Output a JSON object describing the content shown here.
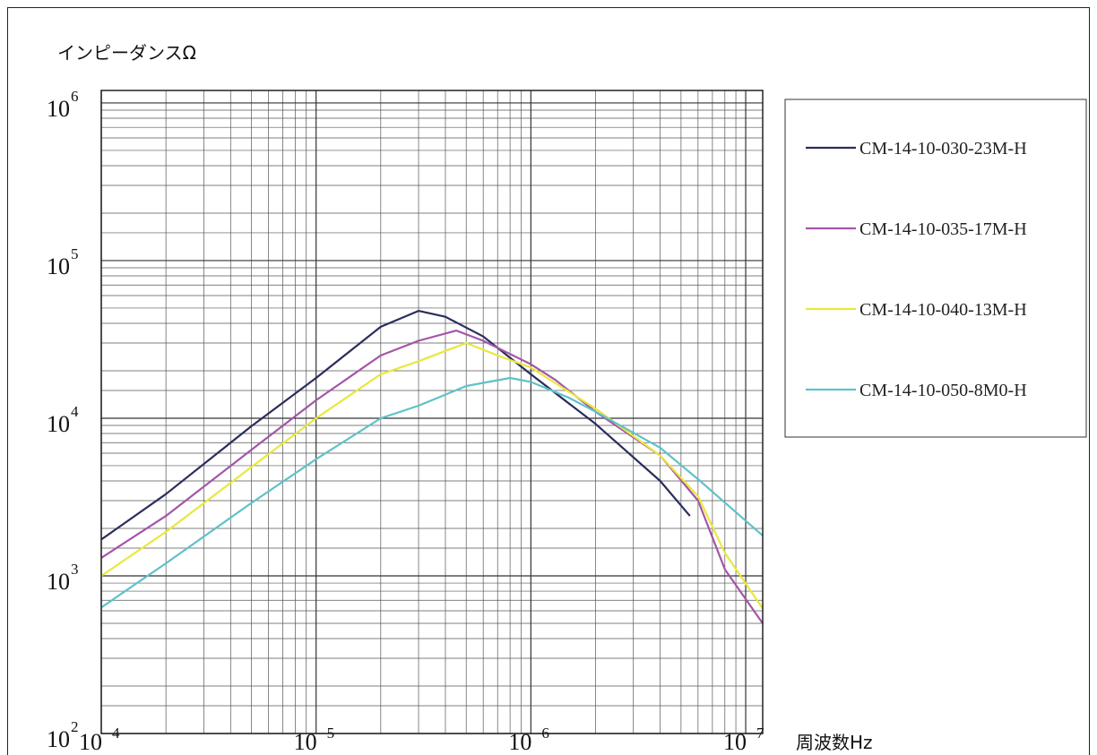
{
  "chart_data": {
    "type": "line",
    "title": "",
    "ylabel": "インピーダンスΩ",
    "xlabel": "周波数Hz",
    "x_scale": "log",
    "y_scale": "log",
    "xlim": [
      10000,
      12000000
    ],
    "ylim": [
      100,
      1200000
    ],
    "grid": true,
    "legend_position": "right",
    "x_ticks": [
      {
        "value": 10000,
        "base": "10",
        "exp": "4"
      },
      {
        "value": 100000,
        "base": "10",
        "exp": "5"
      },
      {
        "value": 1000000,
        "base": "10",
        "exp": "6"
      },
      {
        "value": 10000000,
        "base": "10",
        "exp": "7"
      }
    ],
    "y_ticks": [
      {
        "value": 100,
        "base": "10",
        "exp": "2"
      },
      {
        "value": 1000,
        "base": "10",
        "exp": "3"
      },
      {
        "value": 10000,
        "base": "10",
        "exp": "4"
      },
      {
        "value": 100000,
        "base": "10",
        "exp": "5"
      },
      {
        "value": 1000000,
        "base": "10",
        "exp": "6"
      }
    ],
    "series": [
      {
        "name": "CM-14-10-030-23M-H",
        "color": "#2b2d5c",
        "x": [
          10000,
          20000,
          50000,
          100000,
          200000,
          300000,
          400000,
          600000,
          1000000,
          2000000,
          4000000,
          5500000
        ],
        "y": [
          1700,
          3300,
          8900,
          18000,
          38000,
          48000,
          44000,
          33000,
          19000,
          9200,
          4000,
          2400
        ]
      },
      {
        "name": "CM-14-10-035-17M-H",
        "color": "#a455a8",
        "x": [
          10000,
          20000,
          50000,
          100000,
          200000,
          300000,
          450000,
          600000,
          1000000,
          1300000,
          2000000,
          4000000,
          6000000,
          8000000,
          12000000
        ],
        "y": [
          1300,
          2400,
          6300,
          13000,
          25000,
          31000,
          36000,
          31000,
          22000,
          17500,
          11000,
          5800,
          3000,
          1100,
          500
        ]
      },
      {
        "name": "CM-14-10-040-13M-H",
        "color": "#e8e83c",
        "x": [
          10000,
          20000,
          50000,
          100000,
          200000,
          300000,
          500000,
          700000,
          1000000,
          2000000,
          4000000,
          6000000,
          8000000,
          12000000
        ],
        "y": [
          1000,
          1900,
          4900,
          10000,
          19000,
          23000,
          30000,
          25000,
          21000,
          11500,
          5800,
          3200,
          1400,
          620
        ]
      },
      {
        "name": "CM-14-10-050-8M0-H",
        "color": "#5ec2c9",
        "x": [
          10000,
          20000,
          50000,
          100000,
          200000,
          300000,
          500000,
          800000,
          1000000,
          1500000,
          2000000,
          4000000,
          6000000,
          12000000
        ],
        "y": [
          630,
          1200,
          2900,
          5500,
          10000,
          12000,
          16000,
          18000,
          17000,
          13500,
          11000,
          6500,
          4100,
          1800
        ]
      }
    ]
  }
}
